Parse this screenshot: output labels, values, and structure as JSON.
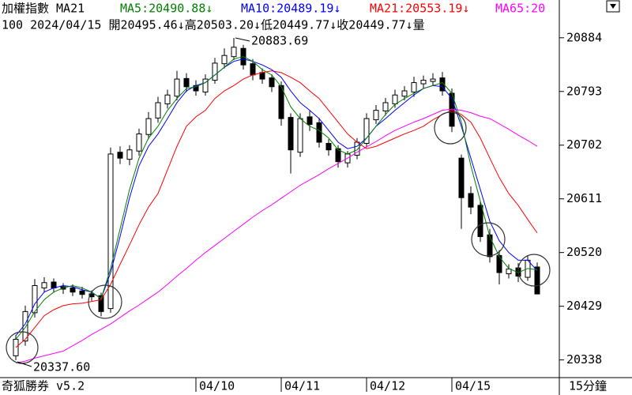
{
  "header": {
    "line1": [
      "加權指數 MA21",
      "MA5:20490.88↓",
      "MA10:20489.19↓",
      "MA21:20553.19↓",
      "MA65:20"
    ],
    "line2": "100 2024/04/15 開20495.46↓高20503.20↓低20449.77↓收20449.77↓量"
  },
  "footer": {
    "app": "奇狐勝券 v5.2",
    "period": "15分鐘"
  },
  "chart_data": {
    "type": "candlestick",
    "categories": [
      null,
      null,
      null,
      null,
      null,
      null,
      null,
      null,
      null,
      null,
      null,
      null,
      null,
      null,
      null,
      null,
      null,
      null,
      null,
      "04/10",
      null,
      null,
      null,
      null,
      null,
      null,
      null,
      null,
      "04/11",
      null,
      null,
      null,
      null,
      null,
      null,
      null,
      null,
      "04/12",
      null,
      null,
      null,
      null,
      null,
      null,
      null,
      null,
      "04/15",
      null,
      null,
      null,
      null,
      null,
      null,
      null,
      null,
      null
    ],
    "open": [
      20345,
      20370,
      20418,
      20460,
      20470,
      20462,
      20460,
      20455,
      20450,
      20447,
      20425,
      20690,
      20678,
      20692,
      20720,
      20748,
      20772,
      20785,
      20815,
      20803,
      20792,
      20812,
      20840,
      20852,
      20866,
      20840,
      20825,
      20816,
      20803,
      20749,
      20690,
      20750,
      20740,
      20705,
      20696,
      20672,
      20685,
      20705,
      20745,
      20760,
      20772,
      20785,
      20792,
      20806,
      20810,
      20816,
      20790,
      20680,
      20620,
      20600,
      20550,
      20515,
      20484,
      20494,
      20478,
      20495.46
    ],
    "high": [
      20380,
      20430,
      20475,
      20478,
      20476,
      20468,
      20466,
      20462,
      20456,
      20452,
      20698,
      20700,
      20702,
      20730,
      20758,
      20784,
      20796,
      20828,
      20824,
      20812,
      20822,
      20850,
      20866,
      20883.69,
      20872,
      20848,
      20832,
      20822,
      20810,
      20756,
      20756,
      20760,
      20748,
      20712,
      20702,
      20692,
      20714,
      20756,
      20770,
      20782,
      20796,
      20802,
      20818,
      20820,
      20824,
      20826,
      20798,
      20686,
      20632,
      20608,
      20560,
      20524,
      20500,
      20502,
      20514,
      20503.2
    ],
    "low": [
      20337.6,
      20362,
      20410,
      20452,
      20452,
      20450,
      20446,
      20442,
      20438,
      20412,
      20418,
      20670,
      20668,
      20684,
      20712,
      20740,
      20764,
      20778,
      20792,
      20786,
      20786,
      20806,
      20832,
      20846,
      20830,
      20812,
      20806,
      20792,
      20735,
      20654,
      20682,
      20726,
      20698,
      20684,
      20664,
      20664,
      20678,
      20698,
      20738,
      20752,
      20765,
      20778,
      20784,
      20798,
      20802,
      20786,
      20724,
      20560,
      20585,
      20538,
      20503,
      20466,
      20476,
      20470,
      20472,
      20449.77
    ],
    "close": [
      20373,
      20420,
      20464,
      20469,
      20460,
      20458,
      20453,
      20449,
      20445,
      20420,
      20687,
      20680,
      20694,
      20721,
      20747,
      20774,
      20787,
      20814,
      20801,
      20794,
      20814,
      20841,
      20854,
      20868,
      20838,
      20821,
      20814,
      20801,
      20747,
      20694,
      20747,
      20737,
      20707,
      20694,
      20674,
      20687,
      20707,
      20747,
      20761,
      20774,
      20787,
      20794,
      20808,
      20812,
      20814,
      20794,
      20734,
      20613,
      20597,
      20547,
      20513,
      20486,
      20492,
      20480,
      20507,
      20449.77
    ],
    "series": [
      {
        "color": "#ff00ff",
        "values": [
          20333,
          20336,
          20341,
          20345,
          20349,
          20353,
          20362,
          20371,
          20381,
          20390,
          20399,
          20410,
          20421,
          20431,
          20442,
          20453,
          20466,
          20480,
          20493,
          20507,
          20520,
          20532,
          20544,
          20556,
          20568,
          20580,
          20591,
          20601,
          20612,
          20623,
          20634,
          20643,
          20652,
          20662,
          20671,
          20680,
          20690,
          20699,
          20708,
          20718,
          20727,
          20734,
          20741,
          20747,
          20754,
          20761,
          20763,
          20761,
          20757,
          20751,
          20747,
          20738,
          20729,
          20719,
          20710,
          20700
        ]
      },
      {
        "color": "#ff0000",
        "values": [
          20359,
          20373,
          20393,
          20413,
          20423,
          20430,
          20433,
          20434,
          20437,
          20440,
          20466,
          20500,
          20533,
          20567,
          20597,
          20620,
          20660,
          20700,
          20734,
          20750,
          20761,
          20781,
          20794,
          20803,
          20814,
          20821,
          20825,
          20828,
          20825,
          20817,
          20808,
          20794,
          20781,
          20761,
          20741,
          20721,
          20707,
          20696,
          20700,
          20707,
          20714,
          20721,
          20727,
          20734,
          20745,
          20754,
          20761,
          20754,
          20741,
          20714,
          20680,
          20647,
          20620,
          20600,
          20576,
          20553.19
        ]
      },
      {
        "color": "#0000ff",
        "values": [
          20379,
          20399,
          20433,
          20453,
          20460,
          20464,
          20462,
          20457,
          20453,
          20442,
          20486,
          20547,
          20613,
          20667,
          20700,
          20721,
          20747,
          20774,
          20794,
          20803,
          20808,
          20821,
          20834,
          20844,
          20848,
          20844,
          20838,
          20830,
          20817,
          20794,
          20774,
          20761,
          20747,
          20727,
          20707,
          20696,
          20700,
          20714,
          20734,
          20747,
          20761,
          20774,
          20787,
          20798,
          20803,
          20801,
          20781,
          20734,
          20680,
          20627,
          20573,
          20540,
          20520,
          20507,
          20507,
          20489.19
        ]
      },
      {
        "color": "#008000",
        "values": [
          20373,
          20393,
          20420,
          20440,
          20453,
          20460,
          20464,
          20460,
          20453,
          20442,
          20493,
          20560,
          20627,
          20680,
          20714,
          20734,
          20761,
          20781,
          20798,
          20801,
          20808,
          20821,
          20834,
          20848,
          20852,
          20844,
          20830,
          20821,
          20801,
          20767,
          20747,
          20734,
          20727,
          20714,
          20694,
          20687,
          20694,
          20714,
          20734,
          20754,
          20771,
          20781,
          20790,
          20798,
          20803,
          20808,
          20790,
          20741,
          20667,
          20607,
          20547,
          20513,
          20493,
          20486,
          20493,
          20490.88
        ]
      }
    ],
    "ylim": [
      20308,
      20948
    ],
    "yticks": [
      20338,
      20429,
      20520,
      20611,
      20702,
      20793,
      20884
    ],
    "annotations": [
      "20883.69",
      "20337.60"
    ]
  }
}
